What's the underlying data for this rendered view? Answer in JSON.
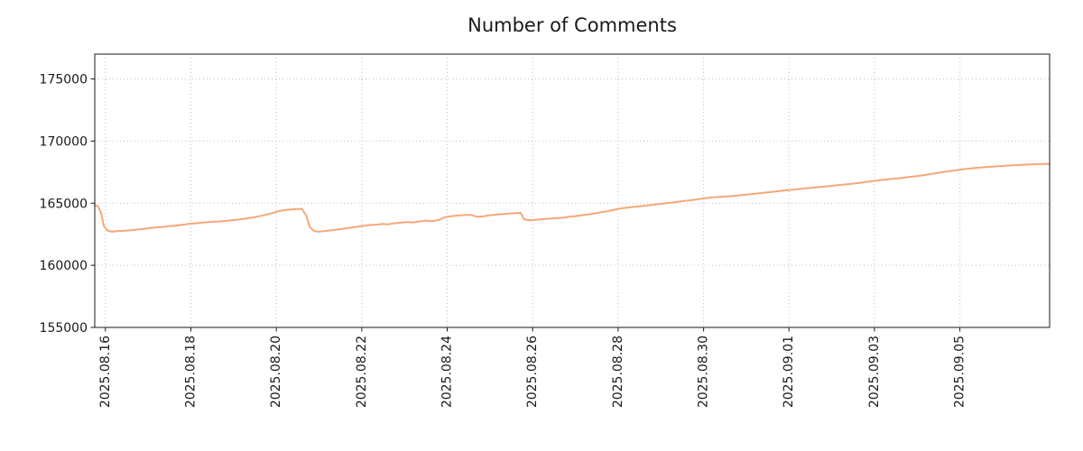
{
  "chart_data": {
    "type": "line",
    "title": "Number of Comments",
    "xlabel": "",
    "ylabel": "",
    "x_unit": "days since 2025-08-16",
    "xlim": [
      -0.25,
      22.1
    ],
    "ylim": [
      155000,
      177000
    ],
    "grid": "dotted",
    "legend": "none",
    "colors": {
      "line": "#f5a878",
      "grid": "#bdbdbd",
      "spine": "#1a1a1a",
      "tick_text": "#1a1a1a",
      "background": "#ffffff"
    },
    "x_ticks": [
      {
        "pos": 0,
        "label": "2025.08.16"
      },
      {
        "pos": 2,
        "label": "2025.08.18"
      },
      {
        "pos": 4,
        "label": "2025.08.20"
      },
      {
        "pos": 6,
        "label": "2025.08.22"
      },
      {
        "pos": 8,
        "label": "2025.08.24"
      },
      {
        "pos": 10,
        "label": "2025.08.26"
      },
      {
        "pos": 12,
        "label": "2025.08.28"
      },
      {
        "pos": 14,
        "label": "2025.08.30"
      },
      {
        "pos": 16,
        "label": "2025.09.01"
      },
      {
        "pos": 18,
        "label": "2025.09.03"
      },
      {
        "pos": 20,
        "label": "2025.09.05"
      }
    ],
    "y_ticks": [
      {
        "pos": 155000,
        "label": "155000"
      },
      {
        "pos": 160000,
        "label": "160000"
      },
      {
        "pos": 165000,
        "label": "165000"
      },
      {
        "pos": 170000,
        "label": "170000"
      },
      {
        "pos": 175000,
        "label": "175000"
      }
    ],
    "series": [
      {
        "name": "comments",
        "color": "#f5a878",
        "points": [
          [
            -0.25,
            164830
          ],
          [
            -0.18,
            164780
          ],
          [
            -0.1,
            164200
          ],
          [
            -0.04,
            163200
          ],
          [
            0.04,
            162820
          ],
          [
            0.15,
            162700
          ],
          [
            0.3,
            162760
          ],
          [
            0.45,
            162790
          ],
          [
            0.6,
            162830
          ],
          [
            0.75,
            162880
          ],
          [
            0.9,
            162930
          ],
          [
            1.05,
            163000
          ],
          [
            1.2,
            163060
          ],
          [
            1.35,
            163090
          ],
          [
            1.5,
            163160
          ],
          [
            1.65,
            163200
          ],
          [
            1.8,
            163260
          ],
          [
            1.95,
            163330
          ],
          [
            2.1,
            163380
          ],
          [
            2.25,
            163430
          ],
          [
            2.4,
            163480
          ],
          [
            2.55,
            163520
          ],
          [
            2.7,
            163540
          ],
          [
            2.85,
            163580
          ],
          [
            3.0,
            163640
          ],
          [
            3.15,
            163700
          ],
          [
            3.3,
            163780
          ],
          [
            3.45,
            163850
          ],
          [
            3.6,
            163950
          ],
          [
            3.75,
            164060
          ],
          [
            3.9,
            164200
          ],
          [
            4.05,
            164350
          ],
          [
            4.2,
            164450
          ],
          [
            4.35,
            164500
          ],
          [
            4.5,
            164530
          ],
          [
            4.6,
            164540
          ],
          [
            4.7,
            164000
          ],
          [
            4.78,
            163100
          ],
          [
            4.88,
            162760
          ],
          [
            5.0,
            162700
          ],
          [
            5.15,
            162770
          ],
          [
            5.3,
            162830
          ],
          [
            5.45,
            162900
          ],
          [
            5.6,
            162960
          ],
          [
            5.75,
            163030
          ],
          [
            5.9,
            163100
          ],
          [
            6.05,
            163180
          ],
          [
            6.2,
            163240
          ],
          [
            6.35,
            163280
          ],
          [
            6.5,
            163330
          ],
          [
            6.62,
            163300
          ],
          [
            6.75,
            163380
          ],
          [
            6.9,
            163430
          ],
          [
            7.05,
            163480
          ],
          [
            7.2,
            163450
          ],
          [
            7.35,
            163530
          ],
          [
            7.5,
            163600
          ],
          [
            7.65,
            163560
          ],
          [
            7.8,
            163650
          ],
          [
            7.95,
            163880
          ],
          [
            8.1,
            163960
          ],
          [
            8.25,
            164010
          ],
          [
            8.4,
            164040
          ],
          [
            8.55,
            164070
          ],
          [
            8.7,
            163900
          ],
          [
            8.85,
            163950
          ],
          [
            9.0,
            164030
          ],
          [
            9.15,
            164080
          ],
          [
            9.3,
            164120
          ],
          [
            9.45,
            164160
          ],
          [
            9.6,
            164200
          ],
          [
            9.72,
            164220
          ],
          [
            9.8,
            163700
          ],
          [
            9.95,
            163620
          ],
          [
            10.1,
            163680
          ],
          [
            10.25,
            163720
          ],
          [
            10.4,
            163760
          ],
          [
            10.55,
            163790
          ],
          [
            10.7,
            163830
          ],
          [
            10.85,
            163900
          ],
          [
            11.0,
            163960
          ],
          [
            11.15,
            164030
          ],
          [
            11.3,
            164100
          ],
          [
            11.45,
            164180
          ],
          [
            11.6,
            164270
          ],
          [
            11.75,
            164360
          ],
          [
            11.9,
            164470
          ],
          [
            12.05,
            164580
          ],
          [
            12.2,
            164640
          ],
          [
            12.35,
            164700
          ],
          [
            12.5,
            164750
          ],
          [
            12.65,
            164810
          ],
          [
            12.8,
            164870
          ],
          [
            12.95,
            164930
          ],
          [
            13.1,
            164990
          ],
          [
            13.25,
            165050
          ],
          [
            13.4,
            165120
          ],
          [
            13.55,
            165180
          ],
          [
            13.7,
            165240
          ],
          [
            13.85,
            165310
          ],
          [
            14.0,
            165390
          ],
          [
            14.15,
            165450
          ],
          [
            14.3,
            165490
          ],
          [
            14.45,
            165530
          ],
          [
            14.6,
            165560
          ],
          [
            14.75,
            165600
          ],
          [
            14.9,
            165650
          ],
          [
            15.05,
            165710
          ],
          [
            15.2,
            165760
          ],
          [
            15.35,
            165820
          ],
          [
            15.5,
            165870
          ],
          [
            15.65,
            165930
          ],
          [
            15.8,
            165990
          ],
          [
            16.0,
            166060
          ],
          [
            16.2,
            166130
          ],
          [
            16.4,
            166200
          ],
          [
            16.6,
            166260
          ],
          [
            16.8,
            166330
          ],
          [
            17.0,
            166400
          ],
          [
            17.2,
            166470
          ],
          [
            17.4,
            166540
          ],
          [
            17.6,
            166620
          ],
          [
            17.8,
            166710
          ],
          [
            18.0,
            166800
          ],
          [
            18.2,
            166880
          ],
          [
            18.4,
            166950
          ],
          [
            18.6,
            167020
          ],
          [
            18.8,
            167100
          ],
          [
            19.0,
            167180
          ],
          [
            19.2,
            167280
          ],
          [
            19.4,
            167400
          ],
          [
            19.6,
            167500
          ],
          [
            19.8,
            167600
          ],
          [
            20.0,
            167700
          ],
          [
            20.2,
            167780
          ],
          [
            20.4,
            167850
          ],
          [
            20.6,
            167900
          ],
          [
            20.8,
            167950
          ],
          [
            21.0,
            168000
          ],
          [
            21.2,
            168040
          ],
          [
            21.4,
            168080
          ],
          [
            21.6,
            168110
          ],
          [
            21.8,
            168140
          ],
          [
            22.0,
            168160
          ],
          [
            22.1,
            168170
          ]
        ]
      }
    ]
  }
}
